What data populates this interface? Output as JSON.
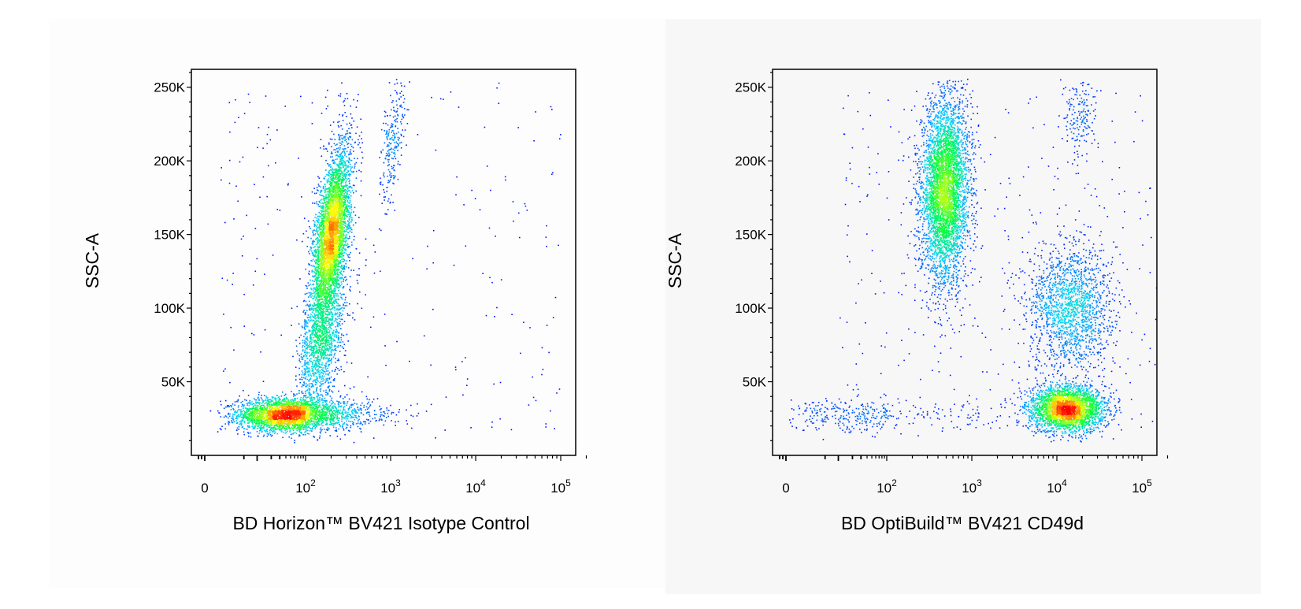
{
  "chart_data": [
    {
      "type": "scatter",
      "title": "",
      "xlabel": "BD Horizon™ BV421 Isotype Control",
      "ylabel": "SSC-A",
      "xscale": "biexponential",
      "xticks": [
        {
          "value": 0,
          "base": "0",
          "exp": ""
        },
        {
          "value": 100,
          "base": "10",
          "exp": "2"
        },
        {
          "value": 1000,
          "base": "10",
          "exp": "3"
        },
        {
          "value": 10000,
          "base": "10",
          "exp": "4"
        },
        {
          "value": 100000,
          "base": "10",
          "exp": "5"
        }
      ],
      "yticks": [
        {
          "value": 50000,
          "label": "50K"
        },
        {
          "value": 100000,
          "label": "100K"
        },
        {
          "value": 150000,
          "label": "150K"
        },
        {
          "value": 200000,
          "label": "200K"
        },
        {
          "value": 250000,
          "label": "250K"
        }
      ],
      "ylim": [
        0,
        262144
      ],
      "grid": false,
      "colormap": [
        "#0000ff",
        "#00d0ff",
        "#00ff40",
        "#ffff00",
        "#ff0000"
      ],
      "series": [
        {
          "kind": "cluster",
          "center": [
            45,
            28000
          ],
          "spread": [
            0.55,
            5500
          ],
          "count": 3200
        },
        {
          "kind": "cluster",
          "center": [
            200,
            150000
          ],
          "spread": [
            0.11,
            30000
          ],
          "corr": 0.55,
          "count": 4200
        },
        {
          "kind": "cluster",
          "center": [
            150,
            75000
          ],
          "spread": [
            0.14,
            22000
          ],
          "corr": 0.4,
          "count": 1300
        },
        {
          "kind": "cluster",
          "center": [
            1050,
            215000
          ],
          "spread": [
            0.07,
            22000
          ],
          "corr": 0.5,
          "count": 250
        },
        {
          "kind": "scatter",
          "xrange": [
            1,
            100000
          ],
          "yrange": [
            10000,
            255000
          ],
          "count": 260
        }
      ]
    },
    {
      "type": "scatter",
      "title": "",
      "xlabel": "BD OptiBuild™ BV421 CD49d",
      "ylabel": "SSC-A",
      "xscale": "biexponential",
      "xticks": [
        {
          "value": 0,
          "base": "0",
          "exp": ""
        },
        {
          "value": 100,
          "base": "10",
          "exp": "2"
        },
        {
          "value": 1000,
          "base": "10",
          "exp": "3"
        },
        {
          "value": 10000,
          "base": "10",
          "exp": "4"
        },
        {
          "value": 100000,
          "base": "10",
          "exp": "5"
        }
      ],
      "yticks": [
        {
          "value": 50000,
          "label": "50K"
        },
        {
          "value": 100000,
          "label": "100K"
        },
        {
          "value": 150000,
          "label": "150K"
        },
        {
          "value": 200000,
          "label": "200K"
        },
        {
          "value": 250000,
          "label": "250K"
        }
      ],
      "ylim": [
        0,
        262144
      ],
      "grid": false,
      "colormap": [
        "#0000ff",
        "#00d0ff",
        "#00ff40",
        "#ffff00",
        "#ff0000"
      ],
      "series": [
        {
          "kind": "cluster",
          "center": [
            480,
            180000
          ],
          "spread": [
            0.14,
            32000
          ],
          "corr": 0.1,
          "count": 4400
        },
        {
          "kind": "cluster",
          "center": [
            13000,
            32000
          ],
          "spread": [
            0.22,
            7500
          ],
          "count": 3000
        },
        {
          "kind": "cluster",
          "center": [
            14000,
            100000
          ],
          "spread": [
            0.25,
            22000
          ],
          "count": 1700
        },
        {
          "kind": "cluster",
          "center": [
            18000,
            230000
          ],
          "spread": [
            0.1,
            16000
          ],
          "count": 180
        },
        {
          "kind": "cluster",
          "center": [
            30,
            27000
          ],
          "spread": [
            0.9,
            6000
          ],
          "count": 350
        },
        {
          "kind": "scatter",
          "xrange": [
            10,
            200000
          ],
          "yrange": [
            10000,
            250000
          ],
          "count": 320
        }
      ]
    }
  ]
}
